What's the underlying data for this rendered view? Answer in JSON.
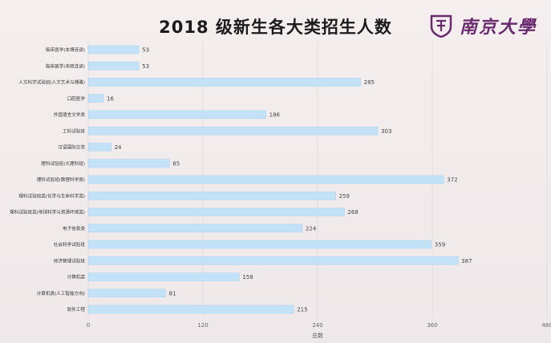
{
  "title": "2018 级新生各大类招生人数",
  "logo": {
    "text": "南京大學",
    "icon": "university-crest-icon",
    "color": "#6a2a6e"
  },
  "colors": {
    "bar": "#c3e2f7",
    "bar_stroke": "#9fcdee",
    "grid": "#d8d2d4",
    "label": "#333333",
    "value": "#444444"
  },
  "chart_data": {
    "type": "bar",
    "orientation": "horizontal",
    "title": "2018 级新生各大类招生人数",
    "xlabel": "总数",
    "ylabel": "",
    "xlim": [
      0,
      480
    ],
    "xticks": [
      0,
      120,
      240,
      360,
      480
    ],
    "grid": true,
    "categories": [
      "临床医学(本博连读)",
      "临床医学(本硕连读)",
      "人文科学试验班(人文艺术与博雅)",
      "口腔医学",
      "外国语言文学类",
      "工科试验班",
      "汉语国际交流",
      "理科试验班(大理科班)",
      "理科试验班(数理科学类)",
      "理科试验班类(化学与生命科学类)",
      "理科试验班类(地球科学与资源环境类)",
      "电子信息类",
      "社会科学试验班",
      "经济管理试验班",
      "计算机类",
      "计算机类(人工智能方向)",
      "软件工程"
    ],
    "values": [
      53,
      53,
      285,
      16,
      186,
      303,
      24,
      85,
      372,
      259,
      268,
      224,
      359,
      387,
      158,
      81,
      215
    ]
  }
}
